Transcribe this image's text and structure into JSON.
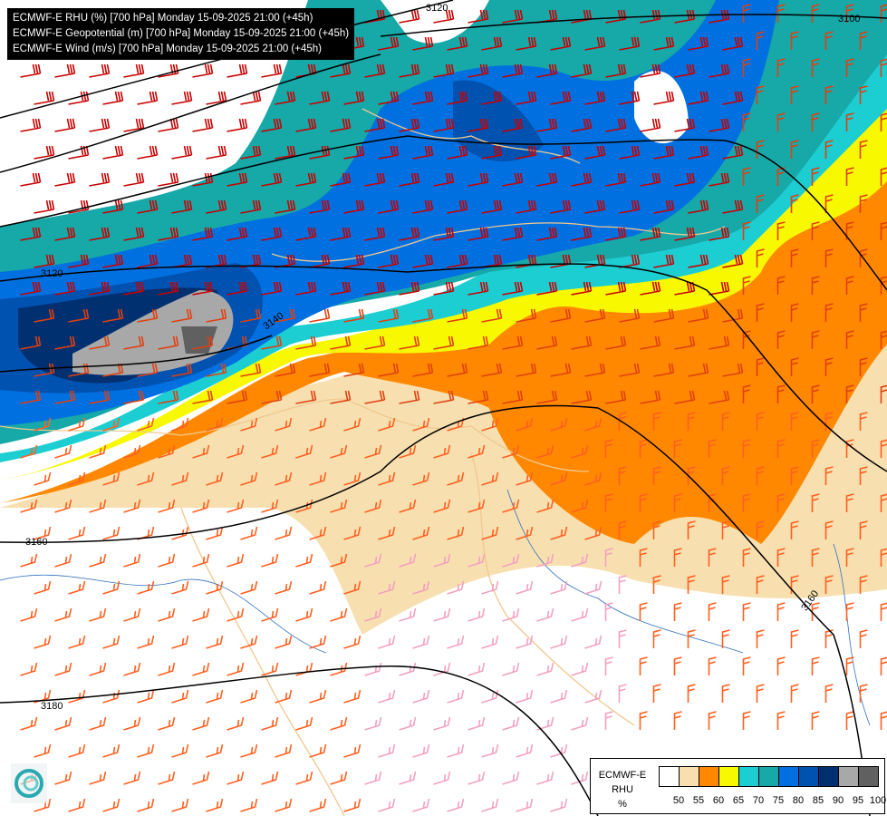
{
  "header": {
    "lines": [
      "ECMWF-E RHU (%) [700 hPa] Monday 15-09-2025 21:00 (+45h)",
      "ECMWF-E Geopotential (m) [700 hPa] Monday 15-09-2025 21:00 (+45h)",
      "ECMWF-E Wind (m/s) [700 hPa] Monday 15-09-2025 21:00 (+45h)"
    ]
  },
  "legend": {
    "title_lines": [
      "ECMWF-E",
      "RHU",
      "%"
    ],
    "colors": [
      "#ffffff",
      "#f7dfb0",
      "#ff8800",
      "#f8f800",
      "#1ccdd2",
      "#17a8a8",
      "#0070e0",
      "#0052b0",
      "#003070",
      "#a8a8a8",
      "#606060"
    ],
    "ticks": [
      "50",
      "55",
      "60",
      "65",
      "70",
      "75",
      "80",
      "85",
      "90",
      "95",
      "100"
    ]
  },
  "contours": {
    "labels": [
      "3100",
      "3120",
      "3120",
      "3140",
      "3160",
      "3160",
      "3180"
    ]
  },
  "wind_colors": {
    "strong": "#c80000",
    "medium": "#e04010",
    "weak": "#ff6020",
    "light": "#f4a0c0"
  },
  "border_color": "#f0c890",
  "river_color": "#3070c0"
}
